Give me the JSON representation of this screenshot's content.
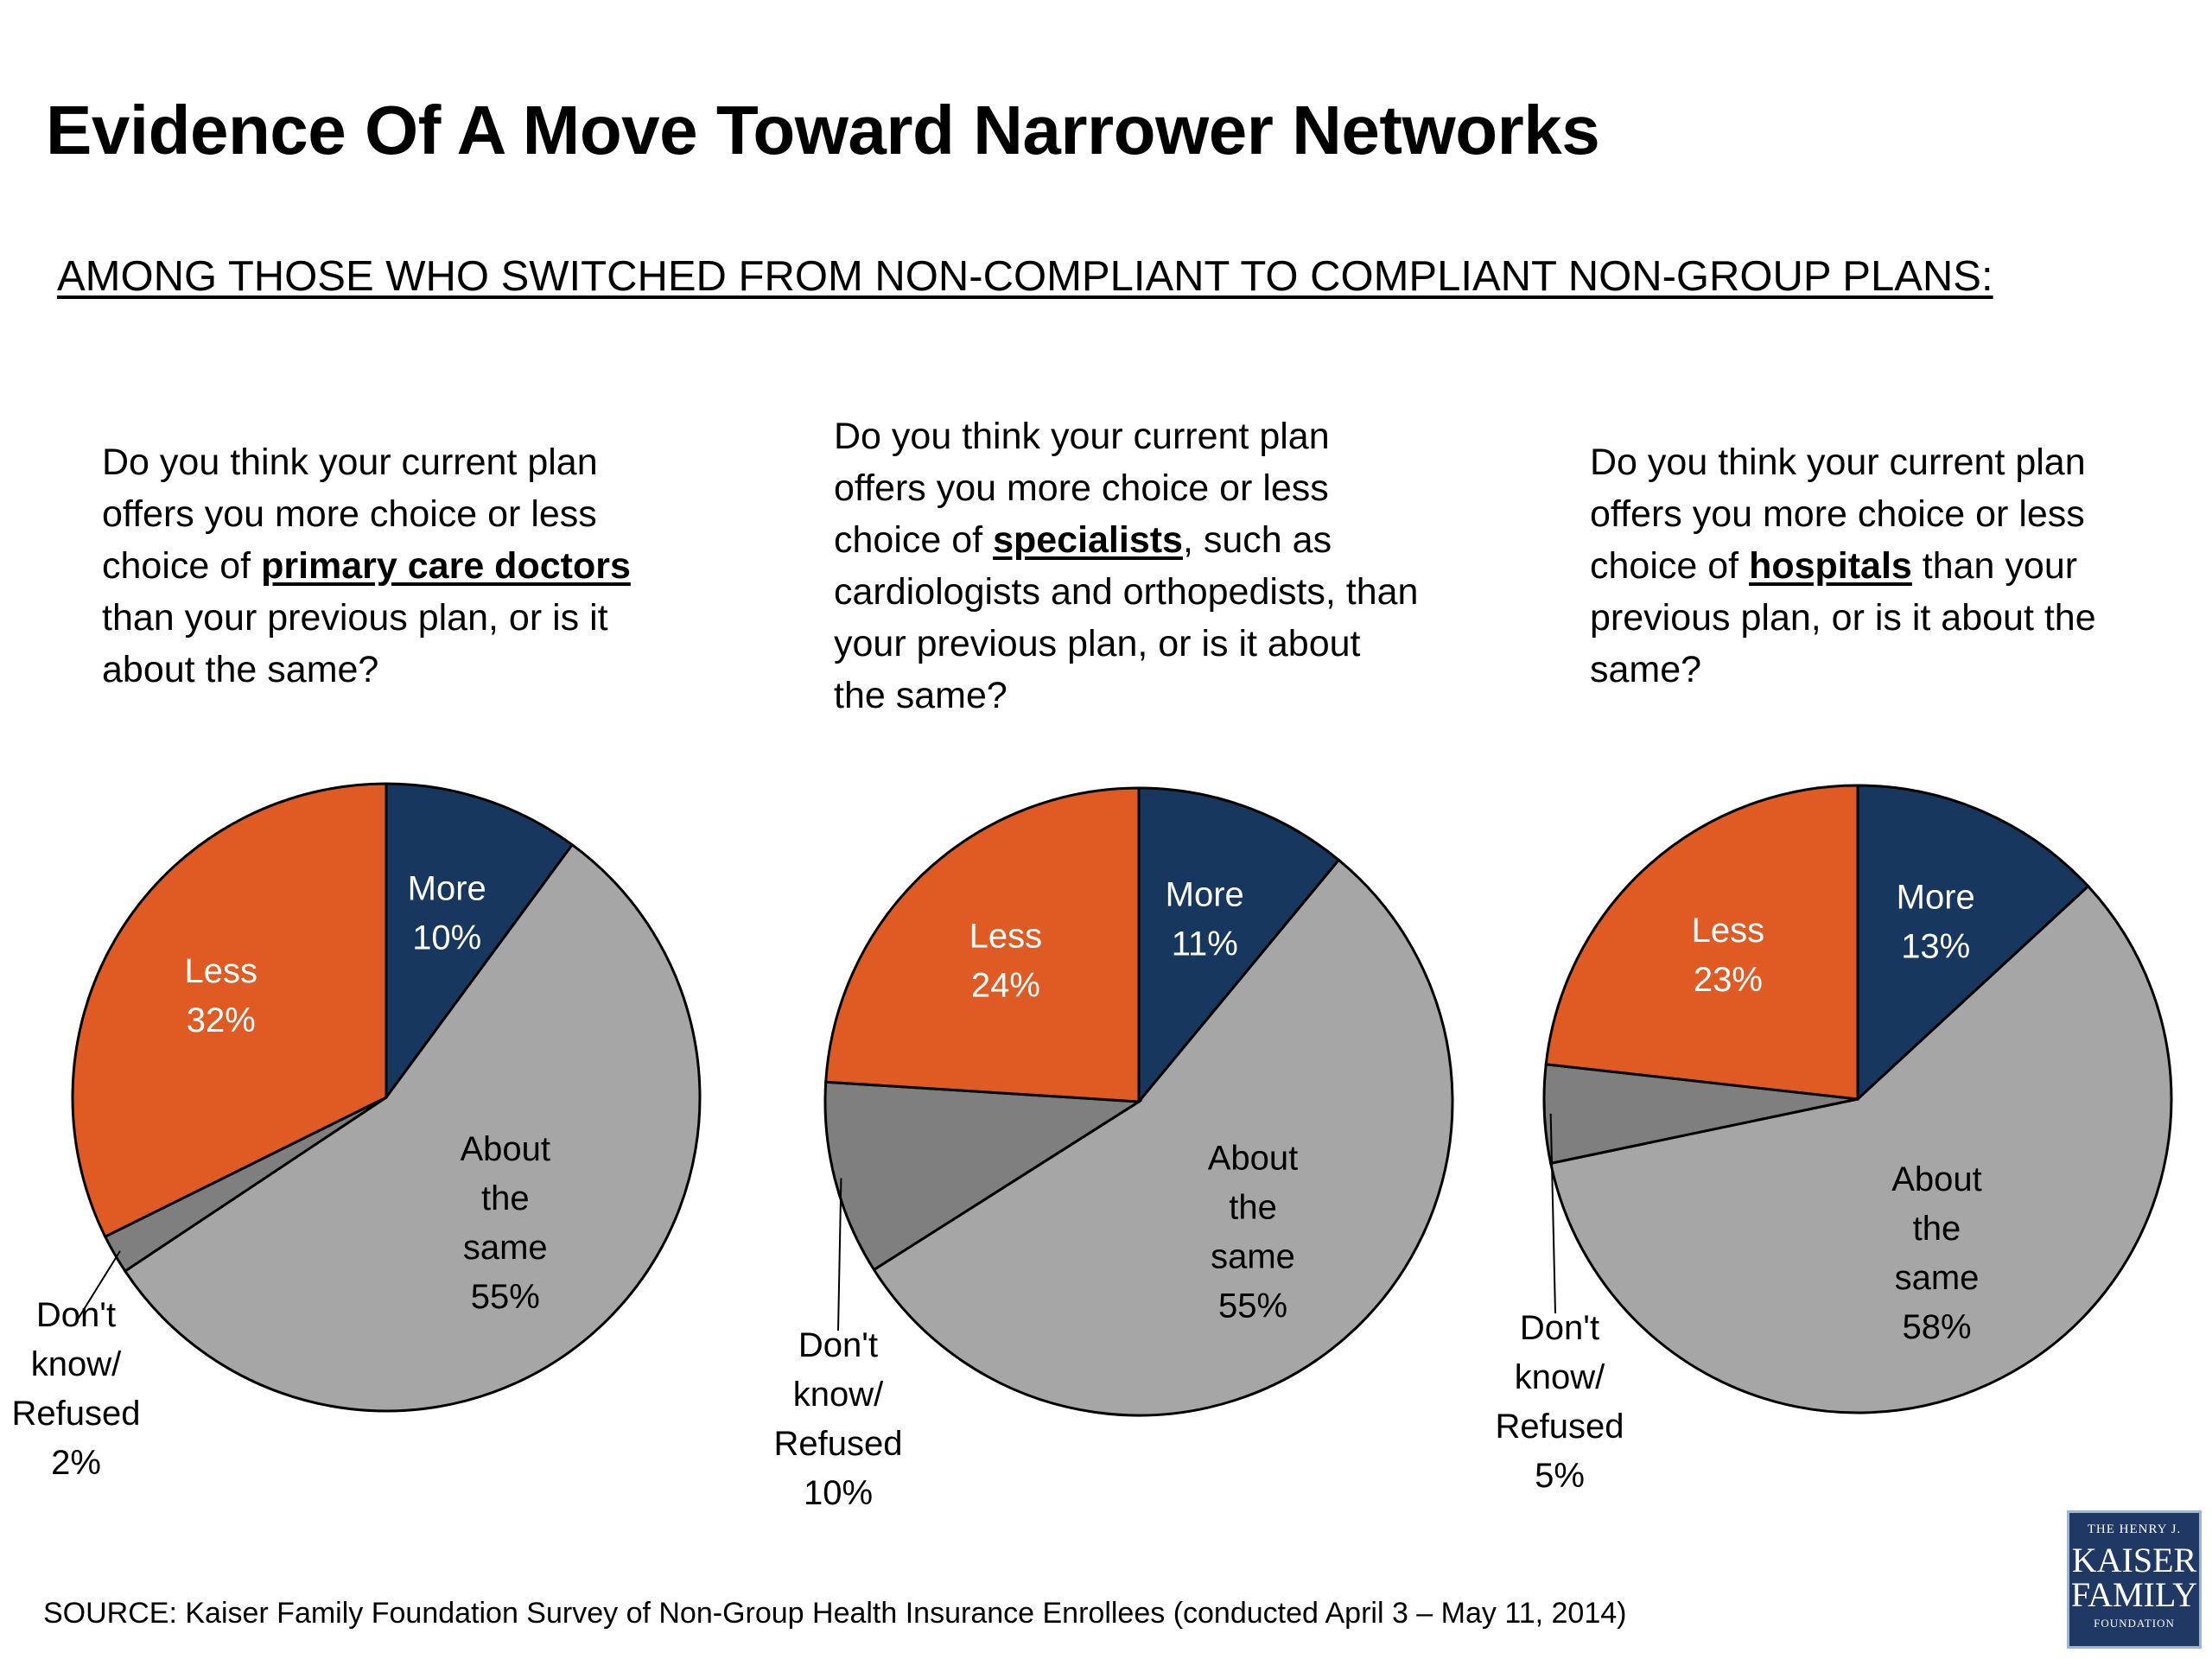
{
  "title": "Evidence Of A Move Toward Narrower Networks",
  "subtitle": "AMONG THOSE WHO SWITCHED FROM NON-COMPLIANT TO COMPLIANT NON-GROUP PLANS:",
  "questions": [
    {
      "before": "Do you think your current plan offers you more choice or less choice of ",
      "emphasis": "primary care doctors",
      "after": " than your previous plan, or is it about the same?"
    },
    {
      "before": "Do you think your current plan offers you more choice or less choice of ",
      "emphasis": "specialists",
      "after": ", such as cardiologists and orthopedists, than your previous plan, or is it about the same?"
    },
    {
      "before": "Do you think your current plan offers you more choice or less choice of ",
      "emphasis": "hospitals",
      "after": " than your previous plan, or is it about the same?"
    }
  ],
  "colors": {
    "more": "#17375e",
    "about_same": "#a6a6a6",
    "dont_know": "#7f7f7f",
    "less": "#e05a23"
  },
  "chart_data": [
    {
      "type": "pie",
      "slices": [
        {
          "label": "More",
          "value": 10
        },
        {
          "label": "About the same",
          "value": 55
        },
        {
          "label": "Don't know/ Refused",
          "value": 2
        },
        {
          "label": "Less",
          "value": 32
        }
      ]
    },
    {
      "type": "pie",
      "slices": [
        {
          "label": "More",
          "value": 11
        },
        {
          "label": "About the same",
          "value": 55
        },
        {
          "label": "Don't know/ Refused",
          "value": 10
        },
        {
          "label": "Less",
          "value": 24
        }
      ]
    },
    {
      "type": "pie",
      "slices": [
        {
          "label": "More",
          "value": 13
        },
        {
          "label": "About the same",
          "value": 58
        },
        {
          "label": "Don't know/ Refused",
          "value": 5
        },
        {
          "label": "Less",
          "value": 23
        }
      ]
    }
  ],
  "source": "SOURCE: Kaiser Family Foundation Survey of Non-Group Health Insurance Enrollees  (conducted April 3 – May 11, 2014)",
  "logo": {
    "line1": "THE HENRY J.",
    "line2": "KAISER",
    "line3": "FAMILY",
    "line4": "FOUNDATION"
  }
}
